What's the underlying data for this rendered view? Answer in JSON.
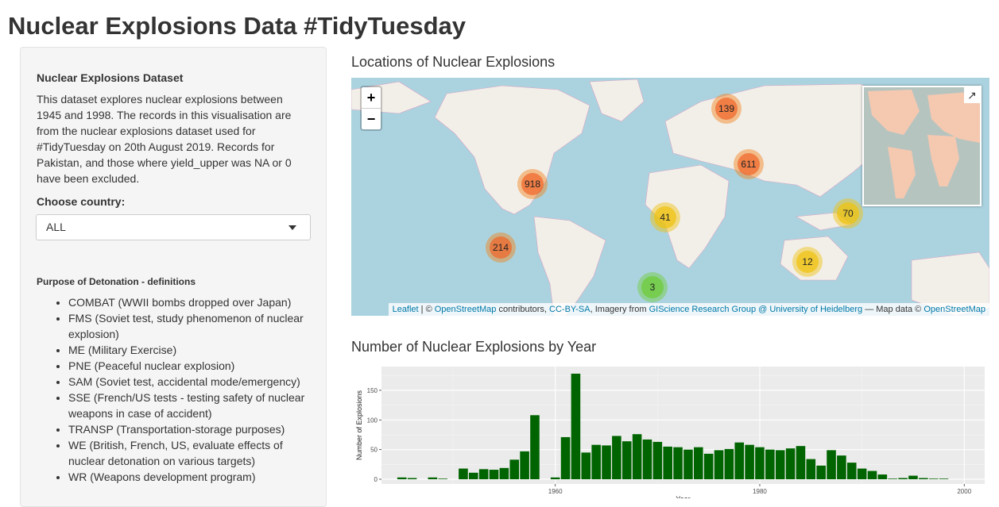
{
  "page_title": "Nuclear Explosions Data #TidyTuesday",
  "sidebar": {
    "dataset_heading": "Nuclear Explosions Dataset",
    "description": "This dataset explores nuclear explosions between 1945 and 1998. The records in this visualisation are from the nuclear explosions dataset used for #TidyTuesday on 20th August 2019. Records for Pakistan, and those where yield_upper was NA or 0 have been excluded.",
    "country_label": "Choose country:",
    "country_value": "ALL",
    "definitions_heading": "Purpose of Detonation - definitions",
    "definitions": [
      "COMBAT (WWII bombs dropped over Japan)",
      "FMS (Soviet test, study phenomenon of nuclear explosion)",
      "ME (Military Exercise)",
      "PNE (Peaceful nuclear explosion)",
      "SAM (Soviet test, accidental mode/emergency)",
      "SSE (French/US tests - testing safety of nuclear weapons in case of accident)",
      "TRANSP (Transportation-storage purposes)",
      "WE (British, French, US, evaluate effects of nuclear detonation on various targets)",
      "WR (Weapons development program)"
    ]
  },
  "map": {
    "title": "Locations of Nuclear Explosions",
    "zoom_in": "+",
    "zoom_out": "−",
    "minimap_toggle": "↗",
    "clusters": [
      {
        "count": "139",
        "level": "large"
      },
      {
        "count": "611",
        "level": "large"
      },
      {
        "count": "918",
        "level": "large"
      },
      {
        "count": "214",
        "level": "large"
      },
      {
        "count": "41",
        "level": "medium"
      },
      {
        "count": "70",
        "level": "medium"
      },
      {
        "count": "12",
        "level": "medium"
      },
      {
        "count": "3",
        "level": "small"
      }
    ],
    "attribution": {
      "leaflet": "Leaflet",
      "sep1": " | © ",
      "osm": "OpenStreetMap",
      "contributors": " contributors, ",
      "license": "CC-BY-SA",
      "imagery": ", Imagery from ",
      "giscience": "GIScience Research Group @ University of Heidelberg",
      "mapdata": " — Map data © ",
      "osm2": "OpenStreetMap"
    },
    "colors": {
      "large": "#f1753b",
      "medium": "#f0c20c",
      "small": "#6ecc39",
      "water": "#abd3df",
      "land": "#f2efe9"
    }
  },
  "chart": {
    "title": "Number of Nuclear Explosions by Year"
  },
  "chart_data": {
    "type": "bar",
    "ylabel": "Number of Explosions",
    "xlabel": "Year",
    "xlim": [
      1943,
      2002
    ],
    "ylim": [
      -8,
      190
    ],
    "x_ticks": [
      1960,
      1980,
      2000
    ],
    "y_ticks": [
      0,
      50,
      100,
      150
    ],
    "bar_color": "#006400",
    "x": [
      1945,
      1946,
      1948,
      1949,
      1951,
      1952,
      1953,
      1954,
      1955,
      1956,
      1957,
      1958,
      1960,
      1961,
      1962,
      1963,
      1964,
      1965,
      1966,
      1967,
      1968,
      1969,
      1970,
      1971,
      1972,
      1973,
      1974,
      1975,
      1976,
      1977,
      1978,
      1979,
      1980,
      1981,
      1982,
      1983,
      1984,
      1985,
      1986,
      1987,
      1988,
      1989,
      1990,
      1991,
      1992,
      1993,
      1994,
      1995,
      1996,
      1997,
      1998
    ],
    "values": [
      3,
      2,
      3,
      1,
      18,
      11,
      17,
      16,
      19,
      33,
      47,
      108,
      3,
      71,
      178,
      45,
      58,
      57,
      73,
      64,
      76,
      67,
      63,
      55,
      54,
      50,
      54,
      43,
      49,
      51,
      62,
      58,
      54,
      50,
      49,
      52,
      56,
      34,
      23,
      49,
      40,
      28,
      18,
      14,
      8,
      1,
      2,
      6,
      2,
      1,
      1
    ]
  }
}
